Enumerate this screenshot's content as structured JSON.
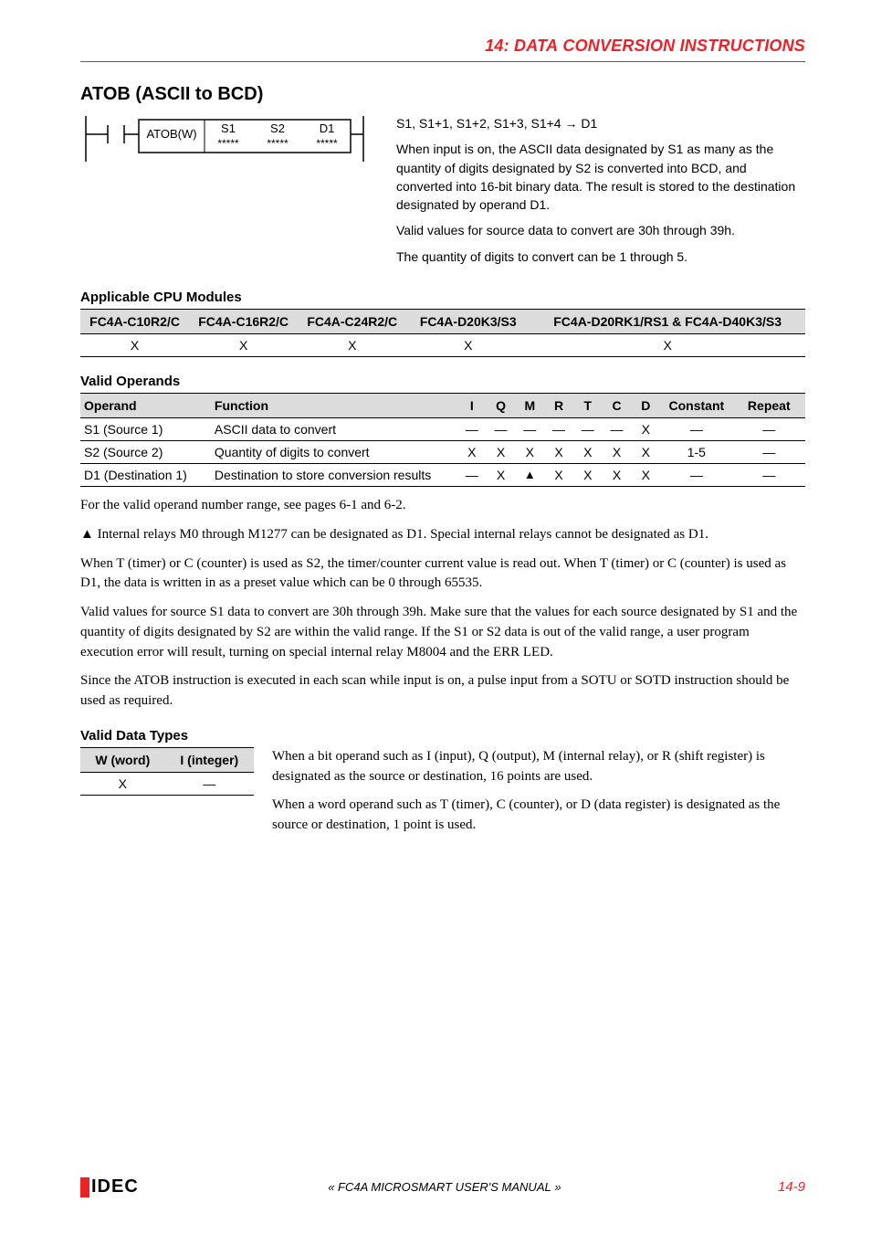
{
  "header": {
    "chapter_num": "14:",
    "title_pre": "D",
    "title_smallcaps1": "ATA",
    "title_mid": " C",
    "title_smallcaps2": "ONVERSION",
    "title_mid2": " I",
    "title_smallcaps3": "NSTRUCTIONS",
    "color": "#ee2127"
  },
  "section_title": "ATOB (ASCII to BCD)",
  "diagram": {
    "label": "ATOB(W)",
    "cols": [
      "S1",
      "S2",
      "D1"
    ],
    "stars": "*****",
    "line_color": "#000000",
    "font_size": 13
  },
  "description": {
    "eq": "S1, S1+1, S1+2, S1+3, S1+4 → D1",
    "p1": "When input is on, the ASCII data designated by S1 as many as the quantity of digits designated by S2 is converted into BCD, and converted into 16-bit binary data. The result is stored to the destination designated by operand D1.",
    "p2": "Valid values for source data to convert are 30h through 39h.",
    "p3": "The quantity of digits to convert can be 1 through 5."
  },
  "cpu": {
    "heading": "Applicable CPU Modules",
    "columns": [
      "FC4A-C10R2/C",
      "FC4A-C16R2/C",
      "FC4A-C24R2/C",
      "FC4A-D20K3/S3",
      "FC4A-D20RK1/RS1 & FC4A-D40K3/S3"
    ],
    "row": [
      "X",
      "X",
      "X",
      "X",
      "X"
    ],
    "col_widths": [
      "15%",
      "15%",
      "15%",
      "17%",
      "38%"
    ]
  },
  "operands": {
    "heading": "Valid Operands",
    "columns": [
      "Operand",
      "Function",
      "I",
      "Q",
      "M",
      "R",
      "T",
      "C",
      "D",
      "Constant",
      "Repeat"
    ],
    "rows": [
      {
        "name": "S1 (Source 1)",
        "func": "ASCII data to convert",
        "vals": [
          "—",
          "—",
          "—",
          "—",
          "—",
          "—",
          "X",
          "—",
          "—"
        ]
      },
      {
        "name": "S2 (Source 2)",
        "func": "Quantity of digits to convert",
        "vals": [
          "X",
          "X",
          "X",
          "X",
          "X",
          "X",
          "X",
          "1-5",
          "—"
        ]
      },
      {
        "name": "D1 (Destination 1)",
        "func": "Destination to store conversion results",
        "vals": [
          "—",
          "X",
          "▲",
          "X",
          "X",
          "X",
          "X",
          "—",
          "—"
        ]
      }
    ],
    "col_widths": [
      "18%",
      "34%",
      "4%",
      "4%",
      "4%",
      "4%",
      "4%",
      "4%",
      "4%",
      "10%",
      "10%"
    ]
  },
  "body": {
    "p1": "For the valid operand number range, see pages 6-1 and 6-2.",
    "p2": "▲ Internal relays M0 through M1277 can be designated as D1. Special internal relays cannot be designated as D1.",
    "p3": "When T (timer) or C (counter) is used as S2, the timer/counter current value is read out. When T (timer) or C (counter) is used as D1, the data is written in as a preset value which can be 0 through 65535.",
    "p4": "Valid values for source S1 data to convert are 30h through 39h. Make sure that the values for each source designated by S1 and the quantity of digits designated by S2 are within the valid range. If the S1 or S2 data is out of the valid range, a user program execution error will result, turning on special internal relay M8004 and the ERR LED.",
    "p5": "Since the ATOB instruction is executed in each scan while input is on, a pulse input from a SOTU or SOTD instruction should be used as required."
  },
  "vdtypes": {
    "heading": "Valid Data Types",
    "columns": [
      "W (word)",
      "I (integer)"
    ],
    "row": [
      "X",
      "—"
    ],
    "p1": "When a bit operand such as I (input), Q (output), M (internal relay), or R (shift register) is designated as the source or destination, 16 points are used.",
    "p2": "When a word operand such as T (timer), C (counter), or D (data register) is designated as the source or destination, 1 point is used."
  },
  "footer": {
    "logo_text": "IDEC",
    "logo_bar_color": "#ee2127",
    "center_pre": "« FC4A M",
    "center_sc1": "ICRO",
    "center_mid": "S",
    "center_sc2": "MART",
    "center_mid2": " U",
    "center_sc3": "SER",
    "center_mid3": "'",
    "center_sc4": "S",
    "center_mid4": " M",
    "center_sc5": "ANUAL",
    "center_suf": " »",
    "pagenum": "14-9"
  }
}
